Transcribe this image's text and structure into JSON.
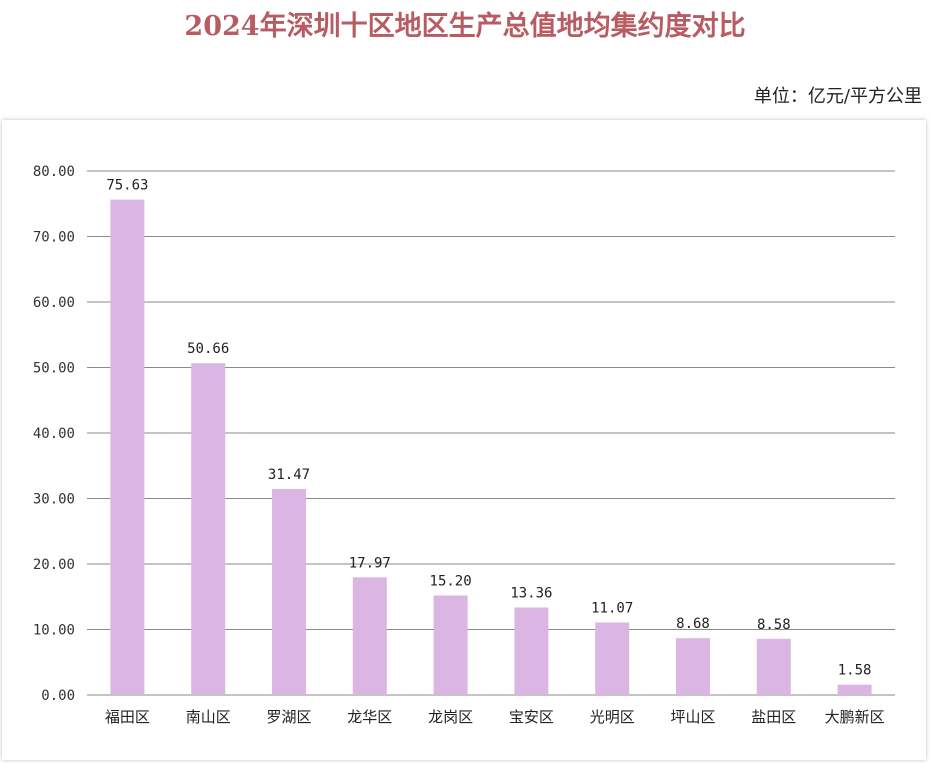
{
  "header": {
    "title": "2024年深圳十区地区生产总值地均集约度对比",
    "unit": "单位：亿元/平方公里"
  },
  "chart_data": {
    "type": "bar",
    "title": "2024年深圳十区地区生产总值地均集约度对比",
    "unit_label": "单位：亿元/平方公里",
    "xlabel": "",
    "ylabel": "",
    "categories": [
      "福田区",
      "南山区",
      "罗湖区",
      "龙华区",
      "龙岗区",
      "宝安区",
      "光明区",
      "坪山区",
      "盐田区",
      "大鹏新区"
    ],
    "values": [
      75.63,
      50.66,
      31.47,
      17.97,
      15.2,
      13.36,
      11.07,
      8.68,
      8.58,
      1.58
    ],
    "data_labels": [
      "75.63",
      "50.66",
      "31.47",
      "17.97",
      "15.20",
      "13.36",
      "11.07",
      "8.68",
      "8.58",
      "1.58"
    ],
    "ylim": [
      0,
      80
    ],
    "yticks": [
      "0.00",
      "10.00",
      "20.00",
      "30.00",
      "40.00",
      "50.00",
      "60.00",
      "70.00",
      "80.00"
    ],
    "grid": true,
    "legend": "none",
    "colors": {
      "bar": "#dcb6e2",
      "grid": "#8a8a8a",
      "title": "#b85c63"
    }
  }
}
